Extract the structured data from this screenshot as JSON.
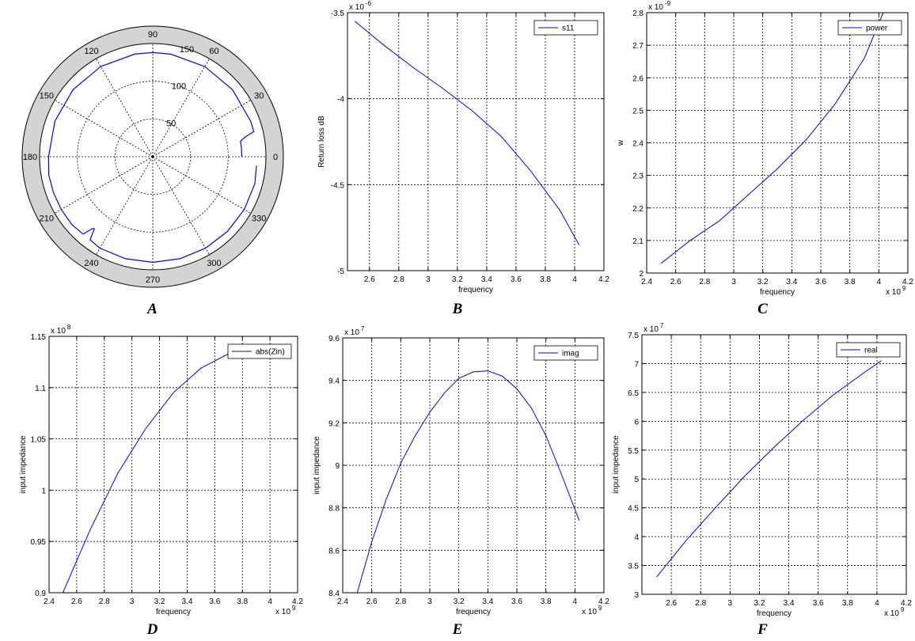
{
  "chart_data": [
    {
      "id": "A",
      "caption": "A",
      "type": "polar",
      "rlim": [
        0,
        150
      ],
      "rticks": [
        "50",
        "100",
        "150"
      ],
      "angle_ticks": [
        "0",
        "30",
        "60",
        "90",
        "120",
        "150",
        "180",
        "210",
        "240",
        "270",
        "300",
        "330"
      ],
      "angle_tick_degrees": [
        0,
        30,
        60,
        90,
        120,
        150,
        180,
        210,
        240,
        270,
        300,
        330
      ],
      "series": [
        {
          "color": "#0000ff",
          "theta": [
            0,
            5,
            10,
            12,
            14,
            20,
            40,
            60,
            80,
            90,
            100,
            120,
            140,
            160,
            180,
            190,
            200,
            210,
            220,
            228,
            230,
            231,
            233,
            240,
            255,
            270,
            285,
            300,
            315,
            330,
            345,
            355
          ],
          "r": [
            118,
            118,
            118,
            125,
            138,
            138,
            138,
            138,
            138,
            138,
            138,
            138,
            138,
            138,
            138,
            140,
            140,
            140,
            140,
            138,
            124,
            123,
            138,
            140,
            140,
            140,
            140,
            140,
            140,
            140,
            140,
            138
          ]
        }
      ],
      "grid": true,
      "legend": "none"
    },
    {
      "id": "B",
      "caption": "B",
      "type": "line",
      "xlabel": "frequency",
      "ylabel": "Return loss dB",
      "xlim": [
        2.45,
        4.2
      ],
      "ylim": [
        -5,
        -3.5
      ],
      "xticks": [
        2.6,
        2.8,
        3,
        3.2,
        3.4,
        3.6,
        3.8,
        4,
        4.2
      ],
      "xtick_labels": [
        "2.6",
        "2.8",
        "3",
        "3.2",
        "3.4",
        "3.6",
        "3.8",
        "4",
        "4.2"
      ],
      "yticks": [
        -5,
        -4.5,
        -4,
        -3.5
      ],
      "ytick_labels": [
        "-5",
        "-4.5",
        "-4",
        "-3.5"
      ],
      "y_exponent_base": "x 10",
      "y_exponent": "-6",
      "x_exponent_base": "",
      "x_exponent": "",
      "grid": true,
      "legend": "top-right",
      "series": [
        {
          "name": "s11",
          "color": "#0000ff",
          "x": [
            2.5,
            2.7,
            2.9,
            3.1,
            3.3,
            3.5,
            3.7,
            3.9,
            4.03
          ],
          "y": [
            -3.55,
            -3.69,
            -3.82,
            -3.94,
            -4.07,
            -4.22,
            -4.42,
            -4.65,
            -4.85
          ]
        }
      ]
    },
    {
      "id": "C",
      "caption": "C",
      "type": "line",
      "xlabel": "frequency",
      "ylabel": "w",
      "xlim": [
        2.4,
        4.2
      ],
      "ylim": [
        2,
        2.8
      ],
      "xticks": [
        2.4,
        2.6,
        2.8,
        3,
        3.2,
        3.4,
        3.6,
        3.8,
        4,
        4.2
      ],
      "xtick_labels": [
        "2.4",
        "2.6",
        "2.8",
        "3",
        "3.2",
        "3.4",
        "3.6",
        "3.8",
        "4",
        "4.2"
      ],
      "yticks": [
        2,
        2.1,
        2.2,
        2.3,
        2.4,
        2.5,
        2.6,
        2.7,
        2.8
      ],
      "ytick_labels": [
        "2",
        "2.1",
        "2.2",
        "2.3",
        "2.4",
        "2.5",
        "2.6",
        "2.7",
        "2.8"
      ],
      "y_exponent_base": "x 10",
      "y_exponent": "-9",
      "x_exponent_base": "x 10",
      "x_exponent": "9",
      "grid": true,
      "legend": "top-right",
      "series": [
        {
          "name": "power",
          "color": "#0000ff",
          "x": [
            2.5,
            2.7,
            2.9,
            3.1,
            3.3,
            3.5,
            3.7,
            3.9,
            4.03
          ],
          "y": [
            2.03,
            2.1,
            2.16,
            2.24,
            2.32,
            2.41,
            2.52,
            2.66,
            2.8
          ]
        }
      ]
    },
    {
      "id": "D",
      "caption": "D",
      "type": "line",
      "xlabel": "frequency",
      "ylabel": "input impedance",
      "xlim": [
        2.4,
        4.2
      ],
      "ylim": [
        0.9,
        1.15
      ],
      "xticks": [
        2.4,
        2.6,
        2.8,
        3,
        3.2,
        3.4,
        3.6,
        3.8,
        4,
        4.2
      ],
      "xtick_labels": [
        "2.4",
        "2.6",
        "2.8",
        "3",
        "3.2",
        "3.4",
        "3.6",
        "3.8",
        "4",
        "4.2"
      ],
      "yticks": [
        0.9,
        0.95,
        1,
        1.05,
        1.1,
        1.15
      ],
      "ytick_labels": [
        "0.9",
        "0.95",
        "1",
        "1.05",
        "1.1",
        "1.15"
      ],
      "y_exponent_base": "x 10",
      "y_exponent": "8",
      "x_exponent_base": "x 10",
      "x_exponent": "9",
      "grid": true,
      "legend": "top-right",
      "series": [
        {
          "name": "abs(Zin)",
          "color": "#0000ff",
          "x": [
            2.5,
            2.7,
            2.9,
            3.1,
            3.3,
            3.5,
            3.7,
            3.9,
            4.03
          ],
          "y": [
            0.9,
            0.962,
            1.017,
            1.06,
            1.095,
            1.119,
            1.133,
            1.136,
            1.13
          ]
        }
      ]
    },
    {
      "id": "E",
      "caption": "E",
      "type": "line",
      "xlabel": "frequency",
      "ylabel": "input impedance",
      "xlim": [
        2.4,
        4.2
      ],
      "ylim": [
        8.4,
        9.6
      ],
      "xticks": [
        2.4,
        2.6,
        2.8,
        3,
        3.2,
        3.4,
        3.6,
        3.8,
        4,
        4.2
      ],
      "xtick_labels": [
        "2.4",
        "2.6",
        "2.8",
        "3",
        "3.2",
        "3.4",
        "3.6",
        "3.8",
        "4",
        "4.2"
      ],
      "yticks": [
        8.4,
        8.6,
        8.8,
        9,
        9.2,
        9.4,
        9.6
      ],
      "ytick_labels": [
        "8.4",
        "8.6",
        "8.8",
        "9",
        "9.2",
        "9.4",
        "9.6"
      ],
      "y_exponent_base": "x 10",
      "y_exponent": "7",
      "x_exponent_base": "x 10",
      "x_exponent": "9",
      "grid": true,
      "legend": "top-right",
      "series": [
        {
          "name": "imag",
          "color": "#0000ff",
          "x": [
            2.5,
            2.6,
            2.7,
            2.8,
            2.9,
            3,
            3.1,
            3.2,
            3.3,
            3.4,
            3.5,
            3.6,
            3.7,
            3.8,
            3.9,
            4.03
          ],
          "y": [
            8.4,
            8.64,
            8.84,
            9.01,
            9.14,
            9.25,
            9.34,
            9.41,
            9.44,
            9.445,
            9.42,
            9.36,
            9.27,
            9.14,
            8.97,
            8.74
          ]
        }
      ]
    },
    {
      "id": "F",
      "caption": "F",
      "type": "line",
      "xlabel": "frequency",
      "ylabel": "input impedance",
      "xlim": [
        2.4,
        4.2
      ],
      "ylim": [
        3,
        7.5
      ],
      "xticks": [
        2.4,
        2.6,
        2.8,
        3,
        3.2,
        3.4,
        3.6,
        3.8,
        4,
        4.2
      ],
      "xtick_labels": [
        "",
        "2.6",
        "2.8",
        "3",
        "3.2",
        "3.4",
        "3.6",
        "3.8",
        "4",
        "4.2"
      ],
      "yticks": [
        3,
        3.5,
        4,
        4.5,
        5,
        5.5,
        6,
        6.5,
        7,
        7.5
      ],
      "ytick_labels": [
        "3",
        "3.5",
        "4",
        "4.5",
        "5",
        "5.5",
        "6",
        "6.5",
        "7",
        "7.5"
      ],
      "y_exponent_base": "x 10",
      "y_exponent": "7",
      "x_exponent_base": "x 10",
      "x_exponent": "9",
      "grid": true,
      "legend": "top-right",
      "series": [
        {
          "name": "real",
          "color": "#0000ff",
          "x": [
            2.5,
            2.7,
            2.9,
            3.1,
            3.3,
            3.5,
            3.7,
            3.9,
            4.03
          ],
          "y": [
            3.3,
            3.93,
            4.5,
            5.05,
            5.55,
            6.02,
            6.45,
            6.82,
            7.05
          ]
        }
      ]
    }
  ]
}
